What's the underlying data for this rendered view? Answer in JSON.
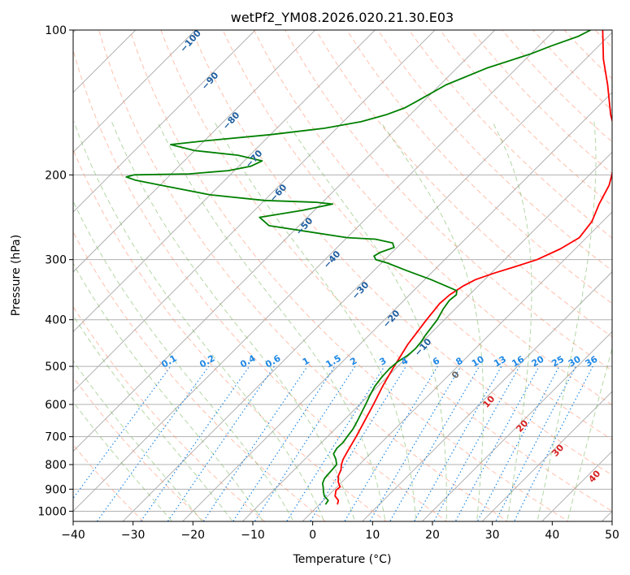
{
  "chart_data": {
    "type": "line",
    "title": "wetPf2_YM08.2026.020.21.30.E03",
    "xlabel": "Temperature (°C)",
    "ylabel": "Pressure (hPa)",
    "xlim": [
      -40,
      50
    ],
    "ylim": [
      1050,
      100
    ],
    "y_scale": "log",
    "x_ticks": [
      "−40",
      "−30",
      "−20",
      "−10",
      "0",
      "10",
      "20",
      "30",
      "40",
      "50"
    ],
    "y_ticks": [
      {
        "p": 100,
        "label": "100"
      },
      {
        "p": 200,
        "label": "200"
      },
      {
        "p": 300,
        "label": "300"
      },
      {
        "p": 400,
        "label": "400"
      },
      {
        "p": 500,
        "label": "500"
      },
      {
        "p": 600,
        "label": "600"
      },
      {
        "p": 700,
        "label": "700"
      },
      {
        "p": 800,
        "label": "800"
      },
      {
        "p": 900,
        "label": "900"
      },
      {
        "p": 1000,
        "label": "1000"
      }
    ],
    "grid": true,
    "series": [
      {
        "role": "temperature",
        "color": "#ff0000",
        "points": [
          [
            968,
            3.0
          ],
          [
            950,
            2.5
          ],
          [
            930,
            1.2
          ],
          [
            905,
            0.4
          ],
          [
            890,
            0.5
          ],
          [
            870,
            -0.6
          ],
          [
            845,
            -1.6
          ],
          [
            820,
            -2.2
          ],
          [
            800,
            -3.0
          ],
          [
            780,
            -3.6
          ],
          [
            750,
            -4.2
          ],
          [
            700,
            -5.2
          ],
          [
            650,
            -6.4
          ],
          [
            600,
            -7.7
          ],
          [
            550,
            -9.2
          ],
          [
            500,
            -10.6
          ],
          [
            450,
            -12.0
          ],
          [
            400,
            -13.0
          ],
          [
            370,
            -13.5
          ],
          [
            355,
            -13.3
          ],
          [
            340,
            -12.5
          ],
          [
            330,
            -11.5
          ],
          [
            320,
            -9.5
          ],
          [
            310,
            -7.0
          ],
          [
            300,
            -4.6
          ],
          [
            285,
            -2.5
          ],
          [
            270,
            -1.2
          ],
          [
            250,
            -1.8
          ],
          [
            230,
            -3.5
          ],
          [
            210,
            -5.0
          ],
          [
            190,
            -7.6
          ],
          [
            170,
            -11.0
          ],
          [
            150,
            -16.5
          ],
          [
            130,
            -22.0
          ],
          [
            115,
            -27.0
          ],
          [
            100,
            -32.0
          ]
        ]
      },
      {
        "role": "dewpoint",
        "color": "#008000",
        "points": [
          [
            968,
            1.0
          ],
          [
            950,
            0.8
          ],
          [
            930,
            -0.6
          ],
          [
            910,
            -1.5
          ],
          [
            895,
            -2.1
          ],
          [
            875,
            -3.0
          ],
          [
            855,
            -3.5
          ],
          [
            835,
            -3.6
          ],
          [
            815,
            -3.7
          ],
          [
            800,
            -3.8
          ],
          [
            780,
            -4.8
          ],
          [
            760,
            -6.1
          ],
          [
            740,
            -6.5
          ],
          [
            720,
            -6.4
          ],
          [
            700,
            -6.7
          ],
          [
            675,
            -7.0
          ],
          [
            650,
            -7.6
          ],
          [
            625,
            -8.3
          ],
          [
            600,
            -9.0
          ],
          [
            575,
            -9.8
          ],
          [
            550,
            -10.5
          ],
          [
            525,
            -10.9
          ],
          [
            505,
            -11.0
          ],
          [
            490,
            -10.8
          ],
          [
            475,
            -10.2
          ],
          [
            460,
            -10.0
          ],
          [
            445,
            -10.2
          ],
          [
            430,
            -10.6
          ],
          [
            400,
            -11.2
          ],
          [
            380,
            -12.0
          ],
          [
            365,
            -12.4
          ],
          [
            355,
            -12.2
          ],
          [
            348,
            -12.8
          ],
          [
            340,
            -15.5
          ],
          [
            330,
            -19.0
          ],
          [
            315,
            -25.0
          ],
          [
            305,
            -29.0
          ],
          [
            300,
            -31.5
          ],
          [
            295,
            -32.4
          ],
          [
            290,
            -32.0
          ],
          [
            283,
            -30.5
          ],
          [
            277,
            -31.5
          ],
          [
            272,
            -35.0
          ],
          [
            270,
            -40.0
          ],
          [
            255,
            -55.0
          ],
          [
            245,
            -58.0
          ],
          [
            237,
            -52.0
          ],
          [
            230,
            -48.0
          ],
          [
            228,
            -51.0
          ],
          [
            226,
            -60.0
          ],
          [
            220,
            -70.0
          ],
          [
            210,
            -80.0
          ],
          [
            205,
            -85.0
          ],
          [
            202,
            -87.0
          ],
          [
            200,
            -86.0
          ],
          [
            199,
            -77.0
          ],
          [
            196,
            -71.0
          ],
          [
            192,
            -68.0
          ],
          [
            187,
            -67.0
          ],
          [
            182,
            -72.0
          ],
          [
            178,
            -80.0
          ],
          [
            173,
            -85.0
          ],
          [
            170,
            -80.0
          ],
          [
            165,
            -70.0
          ],
          [
            160,
            -62.0
          ],
          [
            155,
            -57.0
          ],
          [
            150,
            -54.0
          ],
          [
            145,
            -52.0
          ],
          [
            140,
            -51.0
          ],
          [
            130,
            -49.0
          ],
          [
            120,
            -45.0
          ],
          [
            112,
            -40.0
          ],
          [
            108,
            -38.0
          ],
          [
            103,
            -35.0
          ],
          [
            100,
            -34.0
          ]
        ]
      }
    ],
    "dry_adiabat_labels": [
      "−100",
      "−90",
      "−80",
      "−70",
      "−60",
      "−50",
      "−40",
      "−30",
      "−20",
      "−10"
    ],
    "mixing_ratio_labels": [
      "0.1",
      "0.2",
      "0.4",
      "0.6",
      "1",
      "1.5",
      "2",
      "3",
      "4",
      "6",
      "8",
      "10",
      "13",
      "16",
      "20",
      "25",
      "30",
      "36"
    ],
    "moist_adiabat_labels": [
      "0",
      "10",
      "20",
      "30",
      "40"
    ],
    "colors": {
      "dry_adiabat": "#ff8c69",
      "moist_adiabat": "#6ab04c",
      "mixing_ratio": "#1e88e5",
      "dry_label": "#1f5fa0",
      "moist_label": "#d62020",
      "grid": "#b0b0b0"
    }
  }
}
